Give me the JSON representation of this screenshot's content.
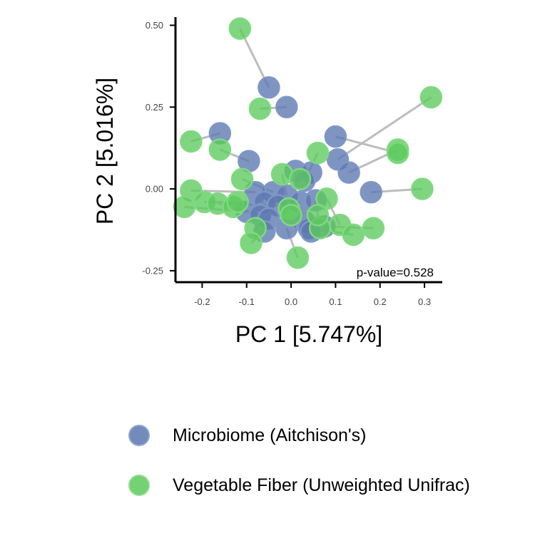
{
  "chart_data": {
    "type": "scatter",
    "xlabel": "PC 1 [5.747%]",
    "ylabel": "PC 2 [5.016%]",
    "xlim": [
      -0.26,
      0.34
    ],
    "ylim": [
      -0.285,
      0.525
    ],
    "x_ticks": [
      -0.2,
      -0.1,
      0.0,
      0.1,
      0.2,
      0.3
    ],
    "x_tick_labels": [
      "-0.2",
      "-0.1",
      "0.0",
      "0.1",
      "0.2",
      "0.3"
    ],
    "y_ticks": [
      -0.25,
      0.0,
      0.25,
      0.5
    ],
    "y_tick_labels": [
      "-0.25",
      "0.00",
      "0.25",
      "0.50"
    ],
    "annotation": "p-value=0.528",
    "grid": false,
    "legend_position": "bottom",
    "series": [
      {
        "name": "Microbiome (Aitchison's)",
        "color": "#5b77b0",
        "points": [
          [
            -0.05,
            0.31
          ],
          [
            -0.01,
            0.25
          ],
          [
            -0.16,
            0.17
          ],
          [
            0.1,
            0.16
          ],
          [
            -0.095,
            0.085
          ],
          [
            0.105,
            0.09
          ],
          [
            0.13,
            0.05
          ],
          [
            0.01,
            0.055
          ],
          [
            0.045,
            0.05
          ],
          [
            0.03,
            0.025
          ],
          [
            0.18,
            -0.01
          ],
          [
            -0.04,
            -0.01
          ],
          [
            -0.08,
            -0.01
          ],
          [
            -0.01,
            -0.02
          ],
          [
            0.02,
            -0.04
          ],
          [
            0.055,
            -0.035
          ],
          [
            -0.06,
            -0.04
          ],
          [
            -0.03,
            -0.05
          ],
          [
            -0.1,
            -0.07
          ],
          [
            -0.07,
            -0.08
          ],
          [
            -0.05,
            -0.09
          ],
          [
            0.03,
            -0.1
          ],
          [
            -0.01,
            -0.12
          ],
          [
            0.04,
            -0.12
          ],
          [
            0.075,
            -0.115
          ],
          [
            -0.06,
            -0.13
          ],
          [
            0.045,
            -0.13
          ]
        ]
      },
      {
        "name": "Vegetable Fiber (Unweighted Unifrac)",
        "color": "#5cc95c",
        "points": [
          [
            -0.115,
            0.49
          ],
          [
            -0.07,
            0.245
          ],
          [
            0.315,
            0.28
          ],
          [
            -0.225,
            0.145
          ],
          [
            -0.16,
            0.12
          ],
          [
            0.24,
            0.12
          ],
          [
            0.24,
            0.11
          ],
          [
            0.06,
            0.11
          ],
          [
            -0.11,
            0.03
          ],
          [
            -0.02,
            0.045
          ],
          [
            0.02,
            0.03
          ],
          [
            0.295,
            0.0
          ],
          [
            -0.225,
            -0.005
          ],
          [
            0.08,
            -0.03
          ],
          [
            -0.195,
            -0.04
          ],
          [
            -0.165,
            -0.045
          ],
          [
            -0.24,
            -0.055
          ],
          [
            -0.13,
            -0.055
          ],
          [
            -0.005,
            -0.06
          ],
          [
            0.11,
            -0.11
          ],
          [
            0.065,
            -0.12
          ],
          [
            0.185,
            -0.12
          ],
          [
            -0.08,
            -0.12
          ],
          [
            0.14,
            -0.14
          ],
          [
            -0.09,
            -0.165
          ],
          [
            0.015,
            -0.21
          ],
          [
            -0.12,
            -0.04
          ],
          [
            0.0,
            -0.08
          ],
          [
            0.06,
            -0.08
          ]
        ]
      }
    ],
    "segments": [
      [
        [
          -0.115,
          0.49
        ],
        [
          -0.05,
          0.31
        ]
      ],
      [
        [
          -0.07,
          0.245
        ],
        [
          -0.01,
          0.25
        ]
      ],
      [
        [
          -0.225,
          0.145
        ],
        [
          -0.16,
          0.17
        ]
      ],
      [
        [
          -0.16,
          0.12
        ],
        [
          -0.095,
          0.085
        ]
      ],
      [
        [
          0.315,
          0.28
        ],
        [
          0.105,
          0.09
        ]
      ],
      [
        [
          0.24,
          0.12
        ],
        [
          0.13,
          0.05
        ]
      ],
      [
        [
          0.24,
          0.11
        ],
        [
          0.1,
          0.16
        ]
      ],
      [
        [
          0.295,
          0.0
        ],
        [
          0.18,
          -0.01
        ]
      ],
      [
        [
          0.06,
          0.11
        ],
        [
          0.03,
          0.025
        ]
      ],
      [
        [
          -0.11,
          0.03
        ],
        [
          -0.04,
          -0.01
        ]
      ],
      [
        [
          -0.02,
          0.045
        ],
        [
          -0.01,
          -0.02
        ]
      ],
      [
        [
          0.02,
          0.03
        ],
        [
          0.045,
          0.05
        ]
      ],
      [
        [
          0.08,
          -0.03
        ],
        [
          0.11,
          -0.11
        ]
      ],
      [
        [
          -0.225,
          -0.005
        ],
        [
          -0.08,
          -0.01
        ]
      ],
      [
        [
          -0.195,
          -0.04
        ],
        [
          -0.06,
          -0.04
        ]
      ],
      [
        [
          -0.165,
          -0.045
        ],
        [
          -0.03,
          -0.05
        ]
      ],
      [
        [
          -0.24,
          -0.055
        ],
        [
          -0.1,
          -0.07
        ]
      ],
      [
        [
          -0.13,
          -0.055
        ],
        [
          -0.07,
          -0.08
        ]
      ],
      [
        [
          -0.005,
          -0.06
        ],
        [
          0.02,
          -0.04
        ]
      ],
      [
        [
          0.065,
          -0.12
        ],
        [
          0.055,
          -0.035
        ]
      ],
      [
        [
          0.185,
          -0.12
        ],
        [
          0.075,
          -0.115
        ]
      ],
      [
        [
          -0.08,
          -0.12
        ],
        [
          -0.05,
          -0.09
        ]
      ],
      [
        [
          0.14,
          -0.14
        ],
        [
          0.04,
          -0.12
        ]
      ],
      [
        [
          -0.09,
          -0.165
        ],
        [
          -0.06,
          -0.13
        ]
      ],
      [
        [
          0.015,
          -0.21
        ],
        [
          -0.01,
          -0.12
        ]
      ],
      [
        [
          0.06,
          -0.08
        ],
        [
          0.045,
          -0.13
        ]
      ],
      [
        [
          0.0,
          -0.08
        ],
        [
          0.03,
          -0.1
        ]
      ]
    ]
  }
}
